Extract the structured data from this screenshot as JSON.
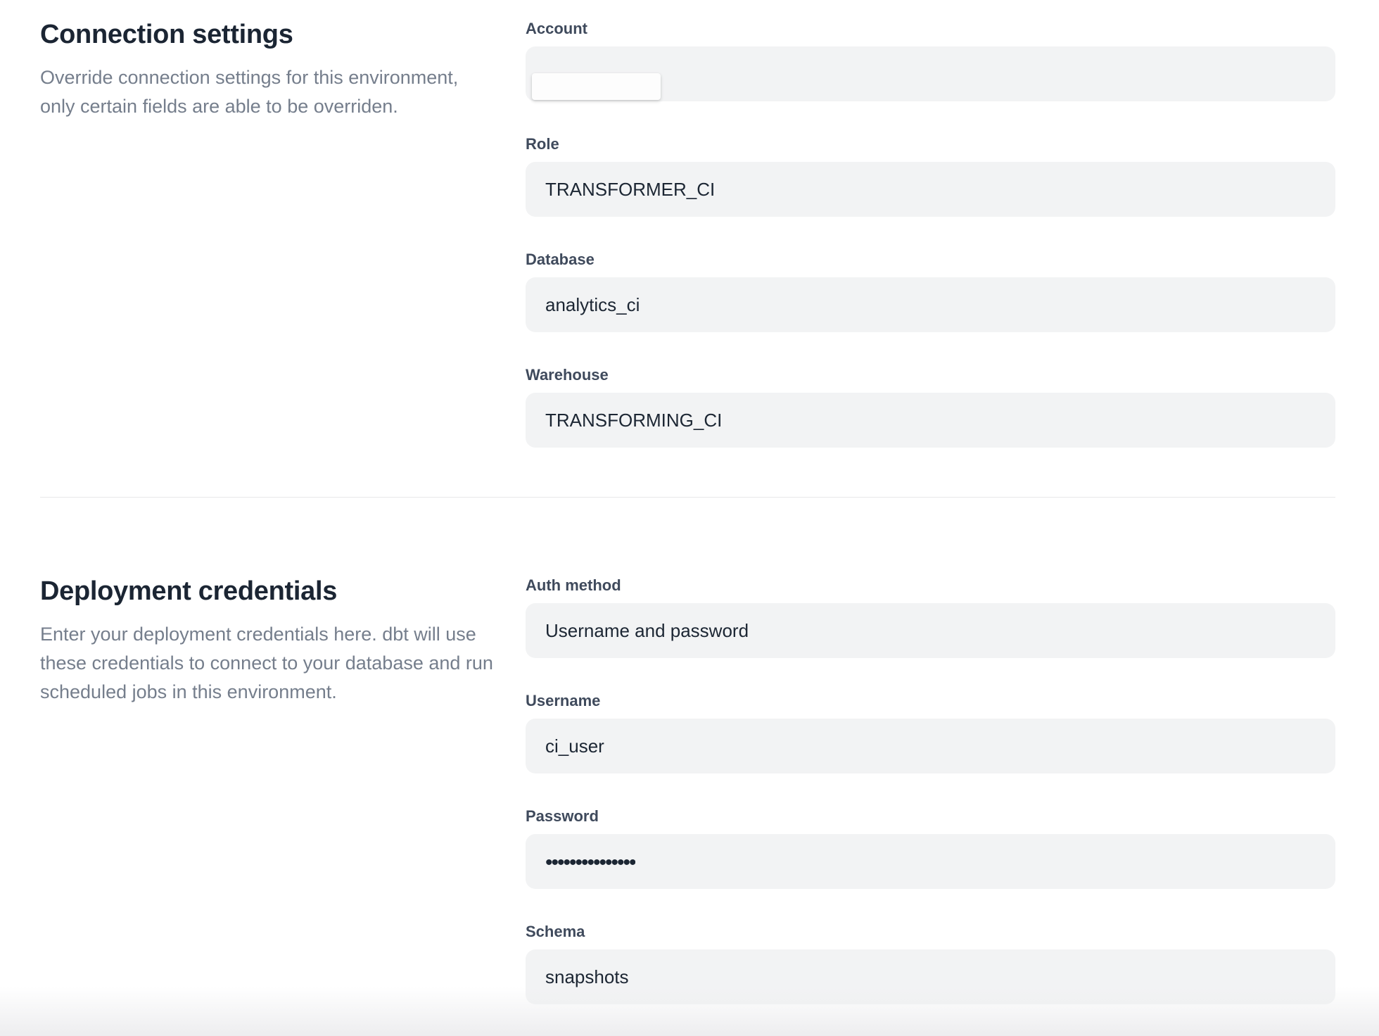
{
  "colors": {
    "heading": "#1b2533",
    "label": "#3f4a5c",
    "value": "#1c2633",
    "description": "#757e8c",
    "input_bg": "#f2f3f4",
    "divider": "#e7e8ea"
  },
  "connection_section": {
    "title": "Connection settings",
    "description": "Override connection settings for this environment, only certain fields are able to be overriden.",
    "fields": [
      {
        "label": "Account",
        "value": "",
        "redacted": true
      },
      {
        "label": "Role",
        "value": "TRANSFORMER_CI"
      },
      {
        "label": "Database",
        "value": "analytics_ci"
      },
      {
        "label": "Warehouse",
        "value": "TRANSFORMING_CI"
      }
    ]
  },
  "credentials_section": {
    "title": "Deployment credentials",
    "description": "Enter your deployment credentials here. dbt will use these credentials to connect to your database and run scheduled jobs in this environment.",
    "fields": [
      {
        "label": "Auth method",
        "value": "Username and password"
      },
      {
        "label": "Username",
        "value": "ci_user"
      },
      {
        "label": "Password",
        "value": "•••••••••••••••",
        "masked": true
      },
      {
        "label": "Schema",
        "value": "snapshots"
      }
    ]
  }
}
